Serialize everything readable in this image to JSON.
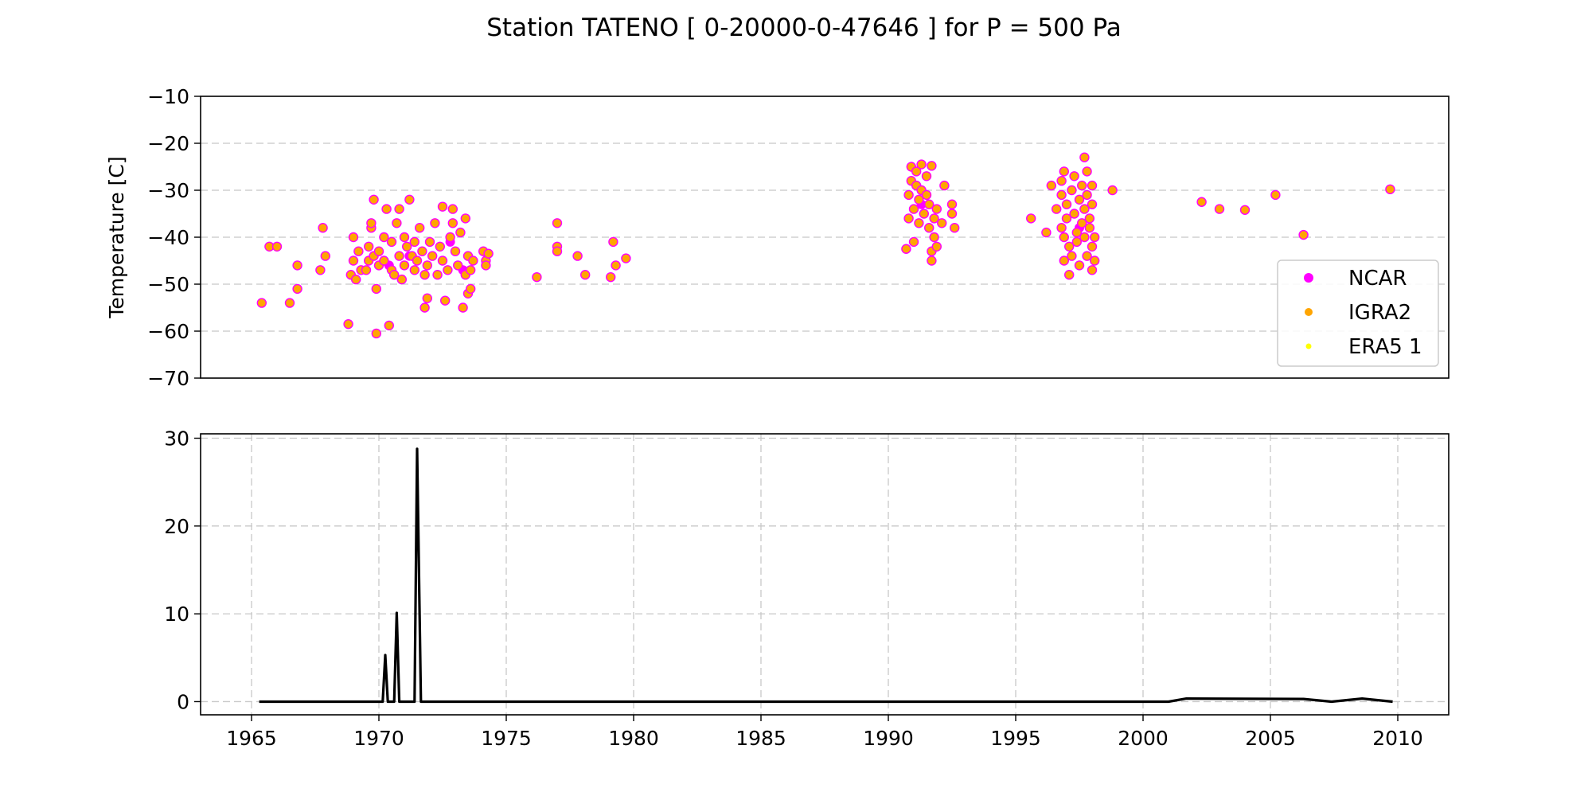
{
  "figure": {
    "title": "Station  TATENO [ 0-20000-0-47646 ]  for P = 500 Pa"
  },
  "chart_data": [
    {
      "type": "scatter",
      "ylabel": "Temperature [C]",
      "xlim": [
        1963,
        2012
      ],
      "ylim": [
        -70,
        -10
      ],
      "yticks": [
        -10,
        -20,
        -30,
        -40,
        -50,
        -60,
        -70
      ],
      "grid": "horizontal",
      "legend_position": "lower-right",
      "series": [
        {
          "name": "NCAR",
          "color": "#ff00ff",
          "points": [
            [
              1970.4,
              -46.0
            ],
            [
              1971.2,
              -44.0
            ],
            [
              1972.8,
              -41.0
            ],
            [
              1973.3,
              -47.0
            ],
            [
              1991.3,
              -33.0
            ],
            [
              1997.5,
              -38.0
            ]
          ]
        },
        {
          "name": "IGRA2",
          "color": "#ffa500",
          "points": [
            [
              1965.4,
              -54.0
            ],
            [
              1965.7,
              -42.0
            ],
            [
              1966.0,
              -42.0
            ],
            [
              1966.5,
              -54.0
            ],
            [
              1966.8,
              -51.0
            ],
            [
              1966.8,
              -46.0
            ],
            [
              1967.7,
              -47.0
            ],
            [
              1967.8,
              -38.0
            ],
            [
              1967.9,
              -44.0
            ],
            [
              1968.8,
              -58.5
            ],
            [
              1968.9,
              -48.0
            ],
            [
              1969.0,
              -40.0
            ],
            [
              1969.0,
              -45.0
            ],
            [
              1969.1,
              -49.0
            ],
            [
              1969.2,
              -43.0
            ],
            [
              1969.3,
              -47.0
            ],
            [
              1969.5,
              -47.0
            ],
            [
              1969.6,
              -42.0
            ],
            [
              1969.6,
              -45.0
            ],
            [
              1969.7,
              -38.0
            ],
            [
              1969.7,
              -37.0
            ],
            [
              1969.8,
              -32.0
            ],
            [
              1969.8,
              -44.0
            ],
            [
              1969.9,
              -51.0
            ],
            [
              1969.9,
              -60.5
            ],
            [
              1970.0,
              -43.0
            ],
            [
              1970.0,
              -46.0
            ],
            [
              1970.2,
              -40.0
            ],
            [
              1970.2,
              -45.0
            ],
            [
              1970.3,
              -34.0
            ],
            [
              1970.4,
              -58.8
            ],
            [
              1970.5,
              -41.0
            ],
            [
              1970.5,
              -47.0
            ],
            [
              1970.6,
              -48.0
            ],
            [
              1970.7,
              -37.0
            ],
            [
              1970.8,
              -34.0
            ],
            [
              1970.8,
              -44.0
            ],
            [
              1970.9,
              -49.0
            ],
            [
              1971.0,
              -46.0
            ],
            [
              1971.0,
              -40.0
            ],
            [
              1971.1,
              -42.0
            ],
            [
              1971.2,
              -32.0
            ],
            [
              1971.3,
              -44.0
            ],
            [
              1971.4,
              -47.0
            ],
            [
              1971.4,
              -41.0
            ],
            [
              1971.5,
              -45.0
            ],
            [
              1971.6,
              -38.0
            ],
            [
              1971.7,
              -43.0
            ],
            [
              1971.8,
              -48.0
            ],
            [
              1971.8,
              -55.0
            ],
            [
              1971.9,
              -53.0
            ],
            [
              1971.9,
              -46.0
            ],
            [
              1972.0,
              -41.0
            ],
            [
              1972.1,
              -44.0
            ],
            [
              1972.2,
              -37.0
            ],
            [
              1972.3,
              -48.0
            ],
            [
              1972.4,
              -42.0
            ],
            [
              1972.5,
              -33.5
            ],
            [
              1972.5,
              -45.0
            ],
            [
              1972.6,
              -53.5
            ],
            [
              1972.7,
              -47.0
            ],
            [
              1972.8,
              -40.0
            ],
            [
              1972.9,
              -34.0
            ],
            [
              1972.9,
              -37.0
            ],
            [
              1973.0,
              -43.0
            ],
            [
              1973.1,
              -46.0
            ],
            [
              1973.2,
              -39.0
            ],
            [
              1973.3,
              -55.0
            ],
            [
              1973.4,
              -36.0
            ],
            [
              1973.4,
              -48.0
            ],
            [
              1973.5,
              -44.0
            ],
            [
              1973.5,
              -52.0
            ],
            [
              1973.6,
              -47.0
            ],
            [
              1973.6,
              -51.0
            ],
            [
              1973.7,
              -45.0
            ],
            [
              1974.1,
              -43.0
            ],
            [
              1974.2,
              -45.0
            ],
            [
              1974.2,
              -46.0
            ],
            [
              1974.3,
              -43.5
            ],
            [
              1976.2,
              -48.5
            ],
            [
              1977.0,
              -37.0
            ],
            [
              1977.0,
              -42.0
            ],
            [
              1977.0,
              -43.0
            ],
            [
              1977.8,
              -44.0
            ],
            [
              1978.1,
              -48.0
            ],
            [
              1979.1,
              -48.5
            ],
            [
              1979.2,
              -41.0
            ],
            [
              1979.3,
              -46.0
            ],
            [
              1979.7,
              -44.5
            ],
            [
              1990.7,
              -42.5
            ],
            [
              1990.8,
              -36.0
            ],
            [
              1990.8,
              -31.0
            ],
            [
              1990.9,
              -28.0
            ],
            [
              1990.9,
              -25.0
            ],
            [
              1991.0,
              -34.0
            ],
            [
              1991.0,
              -41.0
            ],
            [
              1991.1,
              -26.0
            ],
            [
              1991.1,
              -29.0
            ],
            [
              1991.2,
              -37.0
            ],
            [
              1991.2,
              -32.0
            ],
            [
              1991.3,
              -24.5
            ],
            [
              1991.3,
              -30.0
            ],
            [
              1991.4,
              -35.0
            ],
            [
              1991.5,
              -27.0
            ],
            [
              1991.5,
              -31.0
            ],
            [
              1991.6,
              -33.0
            ],
            [
              1991.6,
              -38.0
            ],
            [
              1991.7,
              -43.0
            ],
            [
              1991.7,
              -45.0
            ],
            [
              1991.7,
              -24.8
            ],
            [
              1991.8,
              -40.0
            ],
            [
              1991.8,
              -36.0
            ],
            [
              1991.9,
              -34.0
            ],
            [
              1991.9,
              -42.0
            ],
            [
              1992.1,
              -37.0
            ],
            [
              1992.2,
              -29.0
            ],
            [
              1992.5,
              -33.0
            ],
            [
              1992.5,
              -35.0
            ],
            [
              1992.6,
              -38.0
            ],
            [
              1995.6,
              -36.0
            ],
            [
              1996.2,
              -39.0
            ],
            [
              1996.4,
              -29.0
            ],
            [
              1996.6,
              -34.0
            ],
            [
              1996.8,
              -31.0
            ],
            [
              1996.8,
              -38.0
            ],
            [
              1996.8,
              -28.0
            ],
            [
              1996.9,
              -40.0
            ],
            [
              1996.9,
              -45.0
            ],
            [
              1996.9,
              -26.0
            ],
            [
              1997.0,
              -33.0
            ],
            [
              1997.0,
              -36.0
            ],
            [
              1997.1,
              -42.0
            ],
            [
              1997.1,
              -48.0
            ],
            [
              1997.2,
              -30.0
            ],
            [
              1997.2,
              -44.0
            ],
            [
              1997.3,
              -27.0
            ],
            [
              1997.3,
              -35.0
            ],
            [
              1997.4,
              -39.0
            ],
            [
              1997.4,
              -41.0
            ],
            [
              1997.5,
              -32.0
            ],
            [
              1997.5,
              -46.0
            ],
            [
              1997.6,
              -29.0
            ],
            [
              1997.6,
              -37.0
            ],
            [
              1997.7,
              -23.0
            ],
            [
              1997.7,
              -34.0
            ],
            [
              1997.7,
              -40.0
            ],
            [
              1997.8,
              -26.0
            ],
            [
              1997.8,
              -44.0
            ],
            [
              1997.8,
              -31.0
            ],
            [
              1997.9,
              -38.0
            ],
            [
              1997.9,
              -36.0
            ],
            [
              1998.0,
              -42.0
            ],
            [
              1998.0,
              -47.0
            ],
            [
              1998.0,
              -33.0
            ],
            [
              1998.0,
              -29.0
            ],
            [
              1998.1,
              -40.0
            ],
            [
              1998.1,
              -45.0
            ],
            [
              1998.8,
              -30.0
            ],
            [
              2002.3,
              -32.5
            ],
            [
              2003.0,
              -34.0
            ],
            [
              2004.0,
              -34.2
            ],
            [
              2005.2,
              -31.0
            ],
            [
              2006.3,
              -39.5
            ],
            [
              2009.7,
              -29.8
            ]
          ]
        },
        {
          "name": "ERA5 1",
          "color": "#ffff00",
          "points": []
        }
      ]
    },
    {
      "type": "line",
      "xlim": [
        1963,
        2012
      ],
      "ylim": [
        -1.5,
        30.5
      ],
      "xticks": [
        "1965",
        "1970",
        "1975",
        "1980",
        "1985",
        "1990",
        "1995",
        "2000",
        "2005",
        "2010"
      ],
      "yticks": [
        30,
        20,
        10,
        0
      ],
      "grid": "both",
      "series": [
        {
          "color": "#000000",
          "points": [
            [
              1965.3,
              0
            ],
            [
              1970.15,
              0
            ],
            [
              1970.25,
              5.3
            ],
            [
              1970.35,
              0
            ],
            [
              1970.6,
              0
            ],
            [
              1970.7,
              10.1
            ],
            [
              1970.8,
              0
            ],
            [
              1971.4,
              0
            ],
            [
              1971.5,
              28.8
            ],
            [
              1971.65,
              0
            ],
            [
              2001.0,
              0
            ],
            [
              2001.7,
              0.35
            ],
            [
              2006.3,
              0.3
            ],
            [
              2007.4,
              0
            ],
            [
              2008.6,
              0.35
            ],
            [
              2009.8,
              0
            ]
          ]
        }
      ]
    }
  ]
}
